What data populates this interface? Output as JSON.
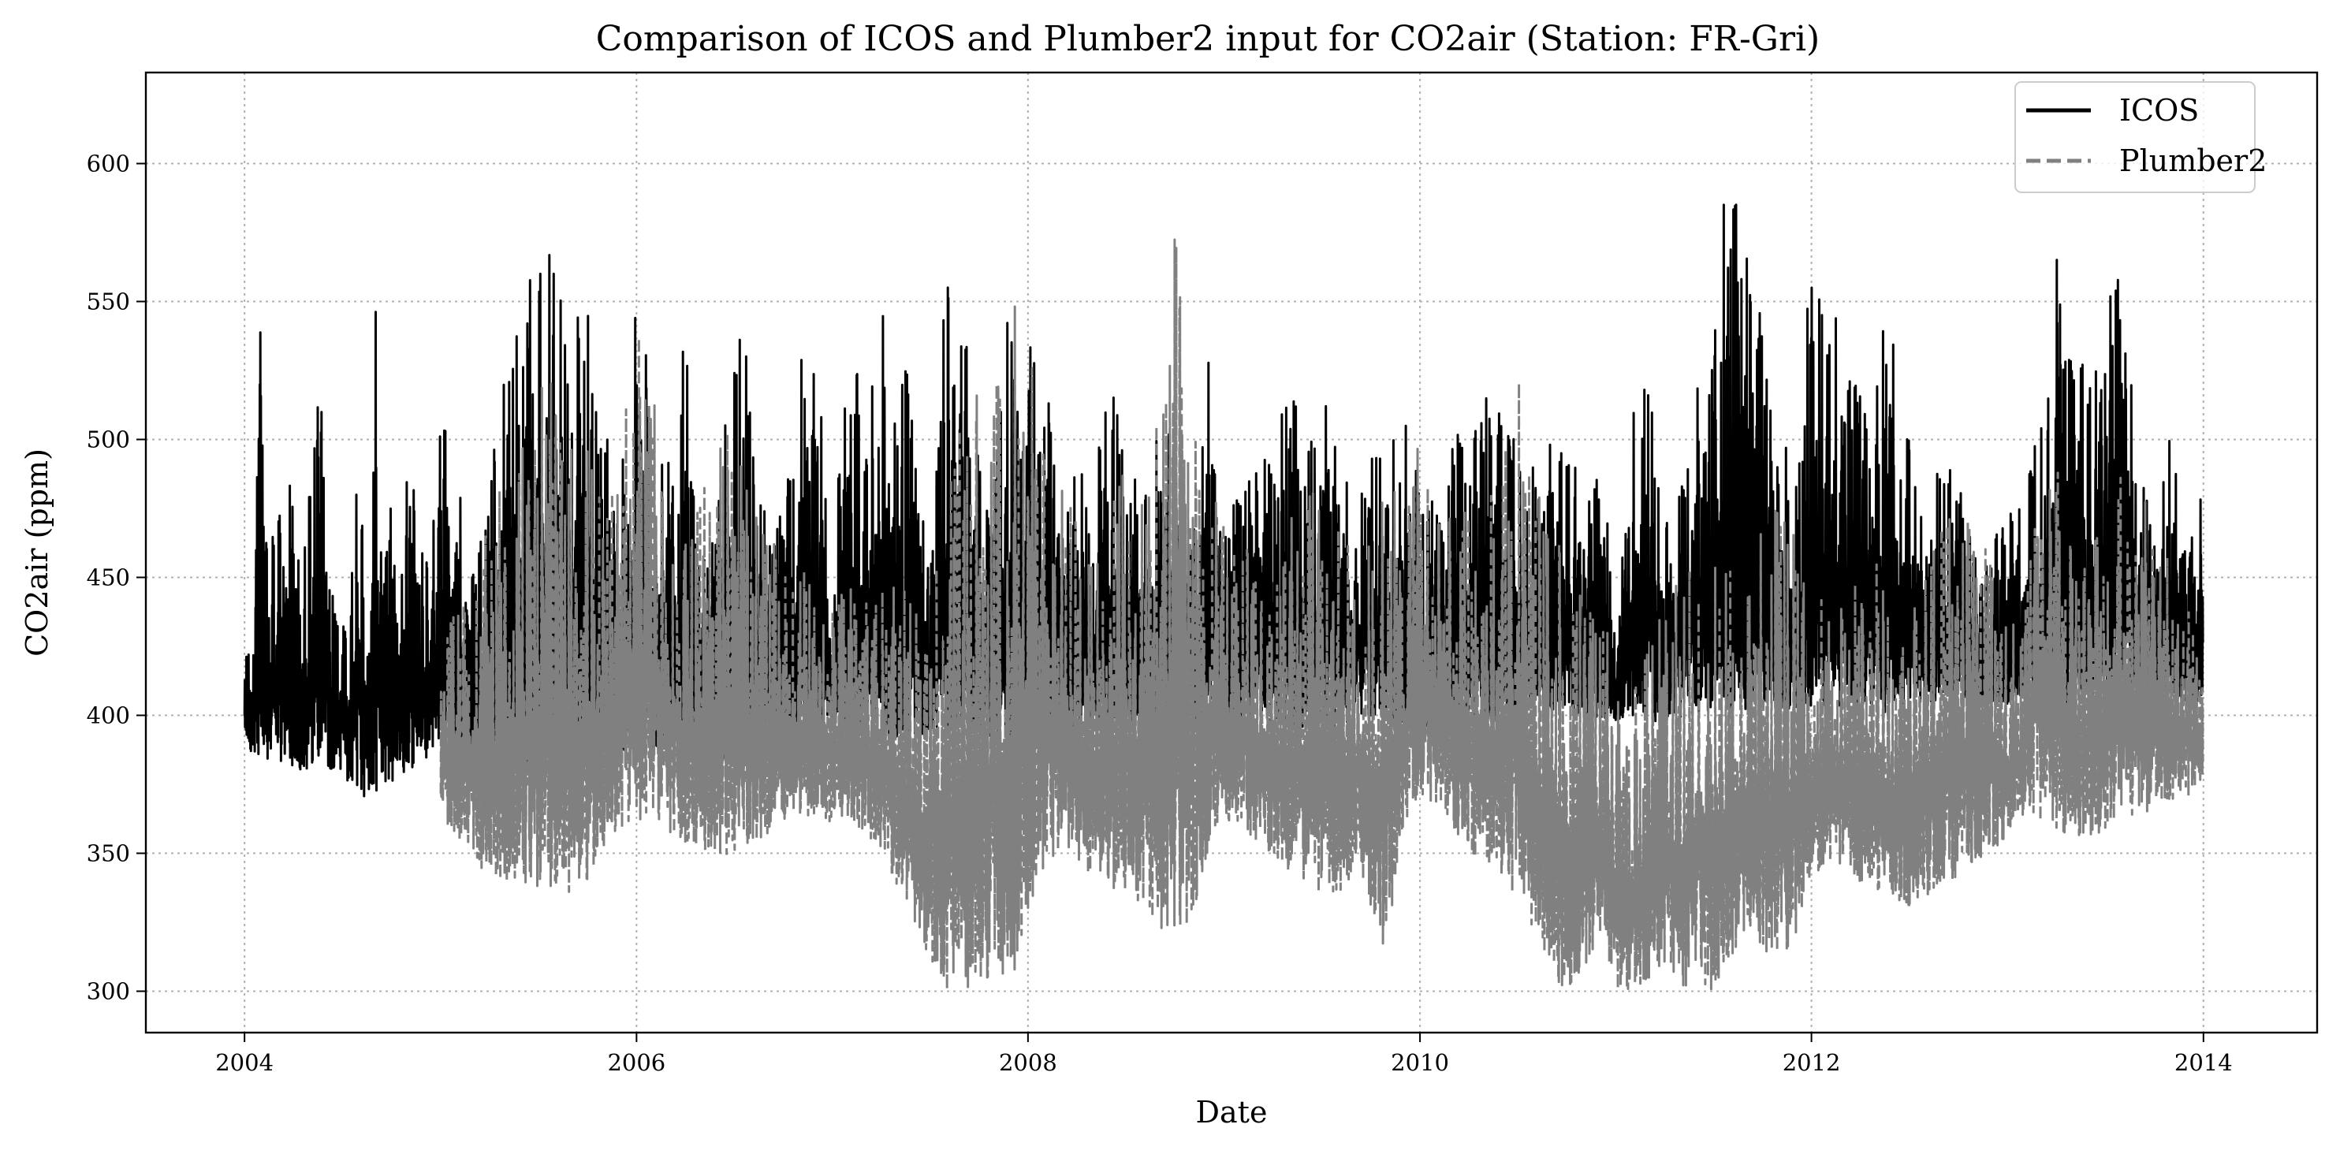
{
  "chart_data": {
    "type": "line",
    "title": "Comparison of ICOS and Plumber2 input for CO2air (Station: FR-Gri)",
    "xlabel": "Date",
    "ylabel": "CO2air (ppm)",
    "x_ticks": [
      "2004",
      "2006",
      "2008",
      "2010",
      "2012",
      "2014"
    ],
    "y_ticks": [
      "300",
      "350",
      "400",
      "450",
      "500",
      "550",
      "600"
    ],
    "xlim": [
      "2003-07-01",
      "2014-08-01"
    ],
    "ylim": [
      285,
      633
    ],
    "grid": true,
    "legend_position": "top-right",
    "colors": {
      "ICOS": "#000000",
      "Plumber2": "#808080"
    },
    "series": [
      {
        "name": "ICOS",
        "style": "solid",
        "x": [
          "2004-01-01",
          "2004-01-15",
          "2004-02-01",
          "2004-02-15",
          "2004-03-01",
          "2004-03-15",
          "2004-04-01",
          "2004-04-15",
          "2004-05-01",
          "2004-05-15",
          "2004-06-01",
          "2004-06-15",
          "2004-07-01",
          "2004-07-15",
          "2004-08-01",
          "2004-08-15",
          "2004-09-01",
          "2004-09-15",
          "2004-10-01",
          "2004-10-15",
          "2004-11-01",
          "2004-11-15",
          "2004-12-01",
          "2004-12-15",
          "2005-01-01",
          "2005-02-01",
          "2005-03-01",
          "2005-04-01",
          "2005-05-01",
          "2005-06-01",
          "2005-07-01",
          "2005-08-01",
          "2005-09-01",
          "2005-10-01",
          "2005-11-01",
          "2005-12-01",
          "2006-01-01",
          "2006-02-01",
          "2006-03-01",
          "2006-04-01",
          "2006-05-01",
          "2006-06-01",
          "2006-07-01",
          "2006-08-01",
          "2006-09-01",
          "2006-10-01",
          "2006-11-01",
          "2006-12-01",
          "2007-01-01",
          "2007-02-01",
          "2007-03-01",
          "2007-04-01",
          "2007-05-01",
          "2007-06-01",
          "2007-07-01",
          "2007-08-01",
          "2007-09-01",
          "2007-10-01",
          "2007-11-01",
          "2007-12-01",
          "2008-01-01",
          "2008-02-01",
          "2008-03-01",
          "2008-04-01",
          "2008-05-01",
          "2008-06-01",
          "2008-07-01",
          "2008-08-01",
          "2008-09-01",
          "2008-10-01",
          "2008-11-01",
          "2008-12-01",
          "2009-01-01",
          "2009-02-01",
          "2009-03-01",
          "2009-04-01",
          "2009-05-01",
          "2009-06-01",
          "2009-07-01",
          "2009-08-01",
          "2009-09-01",
          "2009-10-01",
          "2009-11-01",
          "2009-12-01",
          "2010-01-01",
          "2010-02-01",
          "2010-03-01",
          "2010-04-01",
          "2010-05-01",
          "2010-06-01",
          "2010-07-01",
          "2010-08-01",
          "2010-09-01",
          "2010-10-01",
          "2010-11-01",
          "2010-12-01",
          "2011-01-01",
          "2011-02-01",
          "2011-03-01",
          "2011-04-01",
          "2011-05-01",
          "2011-06-01",
          "2011-07-01",
          "2011-08-01",
          "2011-09-01",
          "2011-10-01",
          "2011-11-01",
          "2011-12-01",
          "2012-01-01",
          "2012-02-01",
          "2012-03-01",
          "2012-04-01",
          "2012-05-01",
          "2012-06-01",
          "2012-07-01",
          "2012-08-01",
          "2012-09-01",
          "2012-10-01",
          "2012-11-01",
          "2012-12-01",
          "2013-01-01",
          "2013-02-01",
          "2013-03-01",
          "2013-04-01",
          "2013-05-01",
          "2013-06-01",
          "2013-07-01",
          "2013-08-01",
          "2013-09-01",
          "2013-10-01",
          "2013-11-01",
          "2013-12-01",
          "2013-12-31"
        ],
        "y_min": [
          392,
          386,
          384,
          384,
          383,
          382,
          381,
          380,
          379,
          378,
          377,
          376,
          375,
          374,
          372,
          370,
          372,
          374,
          376,
          378,
          380,
          382,
          384,
          386,
          388,
          386,
          384,
          382,
          380,
          380,
          381,
          382,
          383,
          384,
          385,
          386,
          388,
          388,
          386,
          384,
          382,
          382,
          384,
          386,
          388,
          390,
          392,
          394,
          396,
          394,
          392,
          390,
          390,
          392,
          394,
          393,
          392,
          392,
          390,
          390,
          392,
          393,
          394,
          395,
          396,
          396,
          395,
          394,
          394,
          395,
          396,
          397,
          398,
          398,
          397,
          396,
          395,
          394,
          394,
          396,
          398,
          399,
          400,
          396,
          394,
          394,
          396,
          398,
          398,
          397,
          396,
          398,
          399,
          400,
          400,
          399,
          398,
          398,
          397,
          398,
          399,
          400,
          400,
          401,
          401,
          402,
          401,
          402,
          402,
          404,
          403,
          402,
          401,
          401,
          402,
          403,
          404,
          405,
          404,
          404,
          404,
          405,
          404,
          403,
          404,
          405,
          406,
          407,
          408,
          407,
          406,
          405,
          404
        ],
        "y_max": [
          452,
          410,
          553,
          449,
          482,
          476,
          507,
          441,
          484,
          523,
          509,
          437,
          466,
          443,
          503,
          444,
          561,
          449,
          505,
          444,
          520,
          470,
          473,
          460,
          531,
          487,
          452,
          480,
          537,
          563,
          562,
          575,
          575,
          549,
          508,
          476,
          577,
          495,
          494,
          556,
          479,
          481,
          539,
          532,
          467,
          474,
          532,
          547,
          460,
          545,
          522,
          548,
          536,
          519,
          454,
          568,
          543,
          514,
          489,
          563,
          542,
          517,
          505,
          494,
          480,
          527,
          493,
          486,
          506,
          500,
          469,
          531,
          475,
          490,
          530,
          489,
          532,
          487,
          527,
          496,
          486,
          509,
          490,
          516,
          497,
          478,
          503,
          510,
          529,
          517,
          526,
          494,
          504,
          511,
          483,
          508,
          433,
          512,
          534,
          465,
          492,
          520,
          531,
          618,
          575,
          544,
          515,
          483,
          568,
          550,
          541,
          528,
          555,
          539,
          505,
          475,
          495,
          489,
          458,
          463,
          475,
          479,
          519,
          571,
          543,
          522,
          554,
          576,
          482,
          485,
          501,
          478,
          480
        ]
      },
      {
        "name": "Plumber2",
        "style": "dashed",
        "x": [
          "2005-01-01",
          "2005-02-01",
          "2005-03-01",
          "2005-04-01",
          "2005-05-01",
          "2005-06-01",
          "2005-07-01",
          "2005-08-01",
          "2005-09-01",
          "2005-10-01",
          "2005-11-01",
          "2005-12-01",
          "2006-01-01",
          "2006-02-01",
          "2006-03-01",
          "2006-04-01",
          "2006-05-01",
          "2006-06-01",
          "2006-07-01",
          "2006-08-01",
          "2006-09-01",
          "2006-10-01",
          "2006-11-01",
          "2006-12-01",
          "2007-01-01",
          "2007-02-01",
          "2007-03-01",
          "2007-04-01",
          "2007-05-01",
          "2007-06-01",
          "2007-07-01",
          "2007-08-01",
          "2007-09-01",
          "2007-10-01",
          "2007-11-01",
          "2007-12-01",
          "2008-01-01",
          "2008-02-01",
          "2008-03-01",
          "2008-04-01",
          "2008-05-01",
          "2008-06-01",
          "2008-07-01",
          "2008-08-01",
          "2008-09-01",
          "2008-10-01",
          "2008-11-01",
          "2008-12-01",
          "2009-01-01",
          "2009-02-01",
          "2009-03-01",
          "2009-04-01",
          "2009-05-01",
          "2009-06-01",
          "2009-07-01",
          "2009-08-01",
          "2009-09-01",
          "2009-10-01",
          "2009-11-01",
          "2009-12-01",
          "2010-01-01",
          "2010-02-01",
          "2010-03-01",
          "2010-04-01",
          "2010-05-01",
          "2010-06-01",
          "2010-07-01",
          "2010-08-01",
          "2010-09-01",
          "2010-10-01",
          "2010-11-01",
          "2010-12-01",
          "2011-01-01",
          "2011-02-01",
          "2011-03-01",
          "2011-04-01",
          "2011-05-01",
          "2011-06-01",
          "2011-07-01",
          "2011-08-01",
          "2011-09-01",
          "2011-10-01",
          "2011-11-01",
          "2011-12-01",
          "2012-01-01",
          "2012-02-01",
          "2012-03-01",
          "2012-04-01",
          "2012-05-01",
          "2012-06-01",
          "2012-07-01",
          "2012-08-01",
          "2012-09-01",
          "2012-10-01",
          "2012-11-01",
          "2012-12-01",
          "2013-01-01",
          "2013-02-01",
          "2013-03-01",
          "2013-04-01",
          "2013-05-01",
          "2013-06-01",
          "2013-07-01",
          "2013-08-01",
          "2013-09-01",
          "2013-10-01",
          "2013-11-01",
          "2013-12-01",
          "2013-12-31"
        ],
        "y_min": [
          362,
          356,
          348,
          342,
          340,
          338,
          334,
          333,
          336,
          340,
          352,
          358,
          362,
          362,
          358,
          354,
          350,
          348,
          350,
          352,
          356,
          358,
          362,
          364,
          360,
          362,
          356,
          352,
          338,
          326,
          312,
          300,
          302,
          300,
          304,
          300,
          326,
          345,
          352,
          348,
          340,
          338,
          334,
          330,
          320,
          312,
          326,
          350,
          362,
          360,
          352,
          346,
          342,
          338,
          334,
          336,
          340,
          330,
          312,
          360,
          372,
          366,
          360,
          352,
          345,
          340,
          334,
          322,
          306,
          300,
          308,
          320,
          300,
          300,
          304,
          305,
          300,
          302,
          300,
          310,
          322,
          316,
          306,
          320,
          340,
          348,
          342,
          338,
          336,
          334,
          330,
          334,
          338,
          342,
          346,
          350,
          356,
          362,
          362,
          358,
          355,
          355,
          358,
          362,
          364,
          366,
          368,
          370,
          372
        ],
        "y_max": [
          440,
          445,
          465,
          470,
          490,
          505,
          522,
          520,
          500,
          498,
          480,
          510,
          545,
          520,
          490,
          470,
          478,
          505,
          500,
          482,
          470,
          460,
          455,
          450,
          445,
          448,
          443,
          450,
          450,
          440,
          455,
          470,
          520,
          526,
          520,
          551,
          540,
          500,
          490,
          470,
          465,
          475,
          490,
          505,
          520,
          578,
          512,
          490,
          470,
          470,
          460,
          455,
          470,
          480,
          490,
          475,
          460,
          470,
          495,
          465,
          515,
          470,
          480,
          475,
          470,
          500,
          526,
          490,
          470,
          465,
          445,
          440,
          420,
          410,
          430,
          445,
          448,
          455,
          460,
          462,
          465,
          470,
          480,
          470,
          445,
          440,
          450,
          460,
          455,
          440,
          430,
          460,
          470,
          475,
          470,
          465,
          430,
          440,
          530,
          505,
          470,
          470,
          480,
          495,
          490,
          470,
          460,
          440,
          430
        ]
      }
    ]
  }
}
